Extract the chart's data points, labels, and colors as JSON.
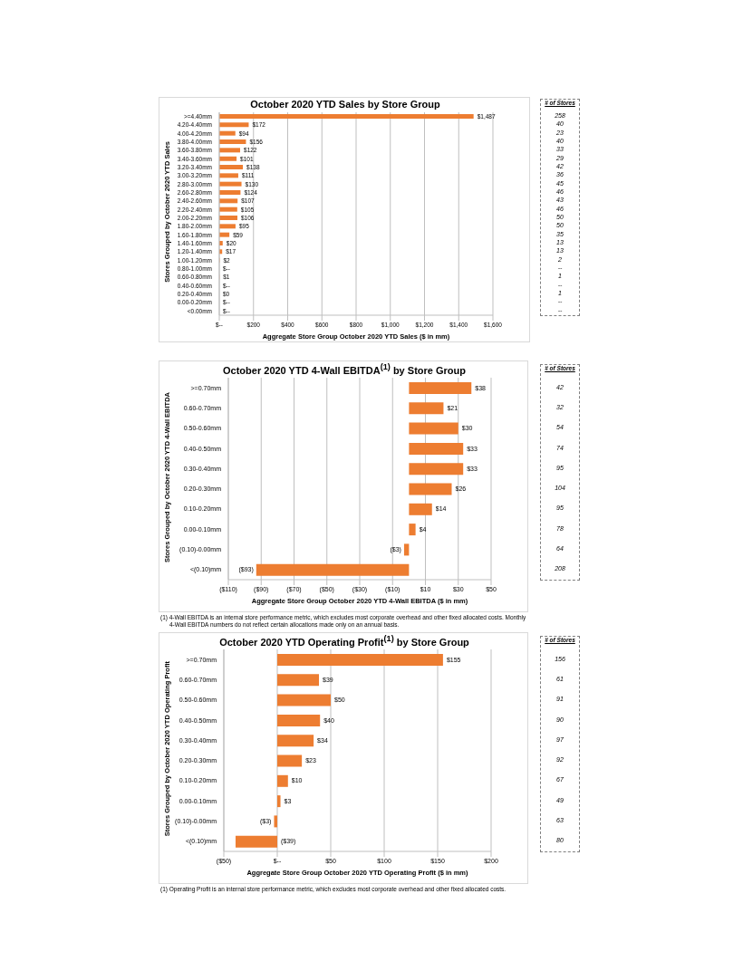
{
  "chart_data": [
    {
      "type": "bar",
      "orientation": "horizontal",
      "title": "October 2020 YTD Sales by Store Group",
      "xlabel": "Aggregate Store Group October 2020 YTD  Sales ($ in mm)",
      "ylabel": "Stores Grouped by October 2020 YTD Sales",
      "y2label": "# of Stores",
      "color": "#ed7d31",
      "grid": "x",
      "categories": [
        ">=4.40mm",
        "4.20-4.40mm",
        "4.00-4.20mm",
        "3.80-4.00mm",
        "3.60-3.80mm",
        "3.40-3.60mm",
        "3.20-3.40mm",
        "3.00-3.20mm",
        "2.80-3.00mm",
        "2.60-2.80mm",
        "2.40-2.60mm",
        "2.20-2.40mm",
        "2.00-2.20mm",
        "1.80-2.00mm",
        "1.60-1.80mm",
        "1.40-1.60mm",
        "1.20-1.40mm",
        "1.00-1.20mm",
        "0.80-1.00mm",
        "0.60-0.80mm",
        "0.40-0.60mm",
        "0.20-0.40mm",
        "0.00-0.20mm",
        "<0.00mm"
      ],
      "y2_categories": [
        "258",
        "40",
        "23",
        "40",
        "33",
        "29",
        "42",
        "36",
        "45",
        "46",
        "43",
        "46",
        "50",
        "50",
        "35",
        "13",
        "13",
        "2",
        "--",
        "1",
        "--",
        "1",
        "--",
        "--"
      ],
      "values": [
        1487,
        172,
        94,
        156,
        122,
        101,
        138,
        111,
        130,
        124,
        107,
        105,
        106,
        95,
        59,
        20,
        17,
        2,
        0,
        1,
        0,
        0,
        0,
        0
      ],
      "value_labels": [
        "$1,487",
        "$172",
        "$94",
        "$156",
        "$122",
        "$101",
        "$138",
        "$111",
        "$130",
        "$124",
        "$107",
        "$105",
        "$106",
        "$95",
        "$59",
        "$20",
        "$17",
        "$2",
        "$--",
        "$1",
        "$--",
        "$0",
        "$--",
        "$--"
      ],
      "xlim": [
        0,
        1600
      ],
      "xticks": [
        {
          "value": 0,
          "label": "$--"
        },
        {
          "value": 200,
          "label": "$200"
        },
        {
          "value": 400,
          "label": "$400"
        },
        {
          "value": 600,
          "label": "$600"
        },
        {
          "value": 800,
          "label": "$800"
        },
        {
          "value": 1000,
          "label": "$1,000"
        },
        {
          "value": 1200,
          "label": "$1,200"
        },
        {
          "value": 1400,
          "label": "$1,400"
        },
        {
          "value": 1600,
          "label": "$1,600"
        }
      ]
    },
    {
      "type": "bar",
      "orientation": "horizontal",
      "title": "October 2020 YTD 4-Wall EBITDA$^{(1)}$ by Store Group",
      "xlabel": "Aggregate Store Group October 2020 YTD 4-Wall EBITDA ($ in mm)",
      "ylabel": "Stores Grouped by October 2020 YTD 4-Wall EBITDA",
      "y2label": "# of Stores",
      "color": "#ed7d31",
      "grid": "x",
      "categories": [
        ">=0.70mm",
        "0.60-0.70mm",
        "0.50-0.60mm",
        "0.40-0.50mm",
        "0.30-0.40mm",
        "0.20-0.30mm",
        "0.10-0.20mm",
        "0.00-0.10mm",
        "(0.10)-0.00mm",
        "<(0.10)mm"
      ],
      "y2_categories": [
        "42",
        "32",
        "54",
        "74",
        "95",
        "104",
        "95",
        "78",
        "64",
        "208"
      ],
      "values": [
        38,
        21,
        30,
        33,
        33,
        26,
        14,
        4,
        -3,
        -93
      ],
      "value_labels": [
        "$38",
        "$21",
        "$30",
        "$33",
        "$33",
        "$26",
        "$14",
        "$4",
        "($3)",
        "($93)"
      ],
      "xlim": [
        -110,
        50
      ],
      "xticks": [
        {
          "value": -110,
          "label": "($110)"
        },
        {
          "value": -90,
          "label": "($90)"
        },
        {
          "value": -70,
          "label": "($70)"
        },
        {
          "value": -50,
          "label": "($50)"
        },
        {
          "value": -30,
          "label": "($30)"
        },
        {
          "value": -10,
          "label": "($10)"
        },
        {
          "value": 10,
          "label": "$10"
        },
        {
          "value": 30,
          "label": "$30"
        },
        {
          "value": 50,
          "label": "$50"
        }
      ],
      "annotations": [
        "(1) 4-Wall EBITDA is an internal store performance metric, which excludes most corporate overhead and other fixed allocated costs. Monthly 4-Wall EBITDA numbers do not reflect certain allocations made only on an annual basis."
      ]
    },
    {
      "type": "bar",
      "orientation": "horizontal",
      "title": "October 2020 YTD Operating Profit$^{(1)}$ by Store Group",
      "xlabel": "Aggregate Store Group October 2020 YTD Operating Profit ($ in mm)",
      "ylabel": "Stores Grouped by October 2020 YTD Operating Profit",
      "y2label": "# of Stores",
      "color": "#ed7d31",
      "grid": "x",
      "categories": [
        ">=0.70mm",
        "0.60-0.70mm",
        "0.50-0.60mm",
        "0.40-0.50mm",
        "0.30-0.40mm",
        "0.20-0.30mm",
        "0.10-0.20mm",
        "0.00-0.10mm",
        "(0.10)-0.00mm",
        "<(0.10)mm"
      ],
      "y2_categories": [
        "156",
        "61",
        "91",
        "90",
        "97",
        "92",
        "67",
        "49",
        "63",
        "80"
      ],
      "values": [
        155,
        39,
        50,
        40,
        34,
        23,
        10,
        3,
        -3,
        -39
      ],
      "value_labels": [
        "$155",
        "$39",
        "$50",
        "$40",
        "$34",
        "$23",
        "$10",
        "$3",
        "($3)",
        "($39)"
      ],
      "xlim": [
        -50,
        200
      ],
      "xticks": [
        {
          "value": -50,
          "label": "($50)"
        },
        {
          "value": 0,
          "label": "$--"
        },
        {
          "value": 50,
          "label": "$50"
        },
        {
          "value": 100,
          "label": "$100"
        },
        {
          "value": 150,
          "label": "$150"
        },
        {
          "value": 200,
          "label": "$200"
        }
      ],
      "annotations": [
        "(1) Operating Profit is an internal store performance metric, which excludes most corporate overhead and other fixed allocated costs."
      ]
    }
  ]
}
